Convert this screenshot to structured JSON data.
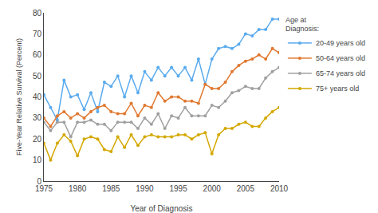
{
  "chart_data": {
    "type": "line",
    "xlabel": "Year of Diagnosis",
    "ylabel": "Five-Year Relative Survival (Percent)",
    "legend_title": "Age at\nDiagnosis:",
    "legend": "right",
    "grid": false,
    "marker": "circle",
    "line_style": "solid",
    "xlim": [
      1975,
      2010
    ],
    "ylim": [
      0,
      80
    ],
    "xticks": [
      1975,
      1980,
      1985,
      1990,
      1995,
      2000,
      2005,
      2010
    ],
    "yticks": [
      0,
      10,
      20,
      30,
      40,
      50,
      60,
      70,
      80
    ],
    "x": [
      1975,
      1976,
      1977,
      1978,
      1979,
      1980,
      1981,
      1982,
      1983,
      1984,
      1985,
      1986,
      1987,
      1988,
      1989,
      1990,
      1991,
      1992,
      1993,
      1994,
      1995,
      1996,
      1997,
      1998,
      1999,
      2000,
      2001,
      2002,
      2003,
      2004,
      2005,
      2006,
      2007,
      2008,
      2009,
      2010
    ],
    "series": [
      {
        "name": "20-49 years old",
        "color": "#5aabee",
        "values": [
          41,
          35,
          29,
          48,
          40,
          41,
          34,
          42,
          33,
          47,
          45,
          50,
          40,
          50,
          42,
          52,
          48,
          54,
          50,
          54,
          50,
          54,
          48,
          58,
          46,
          58,
          63,
          64,
          63,
          65,
          70,
          69,
          72,
          72,
          77,
          77
        ]
      },
      {
        "name": "50-64 years old",
        "color": "#e07830",
        "values": [
          30,
          26,
          31,
          33,
          30,
          32,
          30,
          33,
          35,
          36,
          33,
          32,
          32,
          37,
          31,
          36,
          35,
          42,
          38,
          40,
          40,
          38,
          38,
          37,
          46,
          44,
          44,
          47,
          52,
          55,
          57,
          58,
          60,
          58,
          63,
          61
        ]
      },
      {
        "name": "65-74 years old",
        "color": "#a0a0a0",
        "values": [
          28,
          24,
          28,
          28,
          21,
          28,
          28,
          29,
          27,
          27,
          24,
          28,
          28,
          28,
          25,
          30,
          27,
          32,
          25,
          31,
          30,
          35,
          31,
          31,
          31,
          36,
          35,
          38,
          42,
          43,
          45,
          44,
          44,
          49,
          52,
          54
        ]
      },
      {
        "name": "75+ years old",
        "color": "#d4a800",
        "values": [
          18,
          10,
          18,
          22,
          19,
          12,
          20,
          21,
          20,
          15,
          14,
          21,
          16,
          22,
          17,
          21,
          22,
          21,
          21,
          21,
          22,
          22,
          20,
          22,
          23,
          13,
          22,
          25,
          25,
          27,
          28,
          26,
          26,
          30,
          33,
          35
        ]
      }
    ]
  }
}
